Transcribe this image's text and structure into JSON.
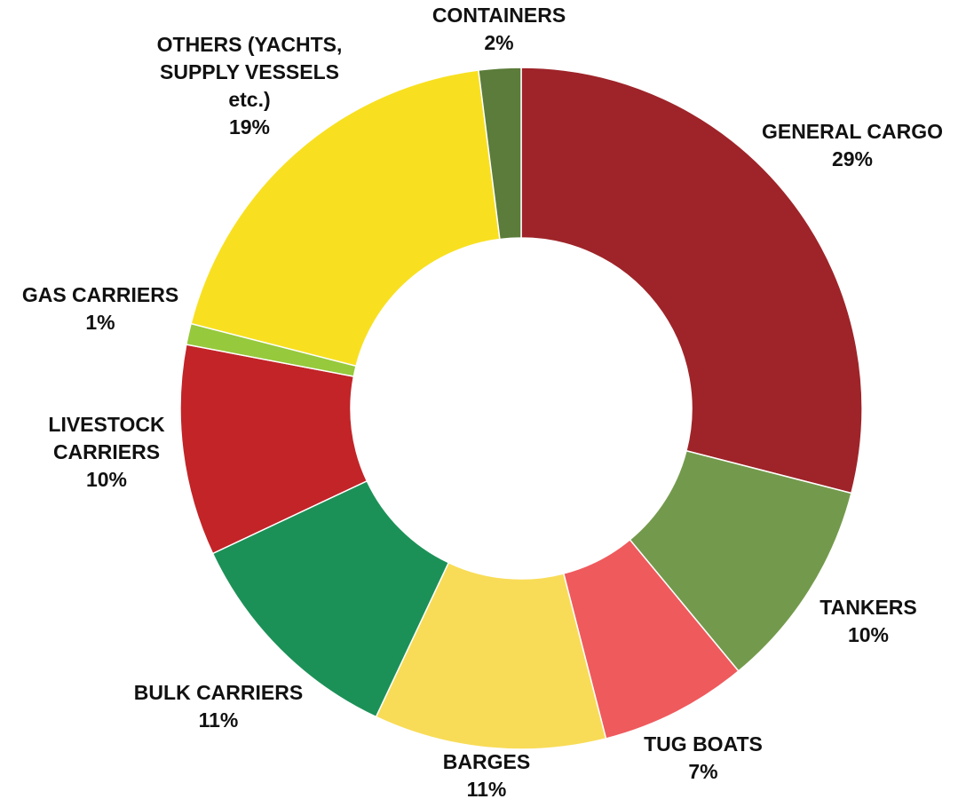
{
  "chart_data": {
    "type": "pie",
    "donut": true,
    "title": "",
    "slices": [
      {
        "label_lines": [
          "GENERAL CARGO"
        ],
        "value": 29,
        "value_label": "29%",
        "color": "#9e2429"
      },
      {
        "label_lines": [
          "TANKERS"
        ],
        "value": 10,
        "value_label": "10%",
        "color": "#739a4c"
      },
      {
        "label_lines": [
          "TUG BOATS"
        ],
        "value": 7,
        "value_label": "7%",
        "color": "#ef5a5d"
      },
      {
        "label_lines": [
          "BARGES"
        ],
        "value": 11,
        "value_label": "11%",
        "color": "#f8dc57"
      },
      {
        "label_lines": [
          "BULK CARRIERS"
        ],
        "value": 11,
        "value_label": "11%",
        "color": "#1c9157"
      },
      {
        "label_lines": [
          "LIVESTOCK",
          "CARRIERS"
        ],
        "value": 10,
        "value_label": "10%",
        "color": "#c22428"
      },
      {
        "label_lines": [
          "GAS CARRIERS"
        ],
        "value": 1,
        "value_label": "1%",
        "color": "#96c93c"
      },
      {
        "label_lines": [
          "OTHERS (YACHTS,",
          "SUPPLY VESSELS",
          "etc.)"
        ],
        "value": 19,
        "value_label": "19%",
        "color": "#f8e021"
      },
      {
        "label_lines": [
          "CONTAINERS"
        ],
        "value": 2,
        "value_label": "2%",
        "color": "#5b7c3a"
      }
    ]
  }
}
